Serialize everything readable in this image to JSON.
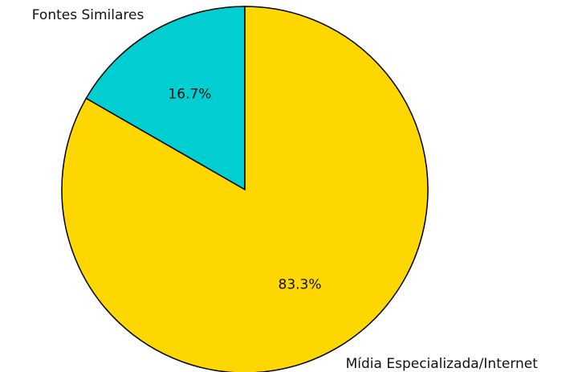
{
  "chart_data": {
    "type": "pie",
    "categories": [
      "Fontes Similares",
      "Mídia Especializada/Internet"
    ],
    "values": [
      16.7,
      83.3
    ],
    "value_labels": [
      "16.7%",
      "83.3%"
    ],
    "colors": [
      "#00ced1",
      "#ffd700"
    ],
    "startangle": 90
  }
}
